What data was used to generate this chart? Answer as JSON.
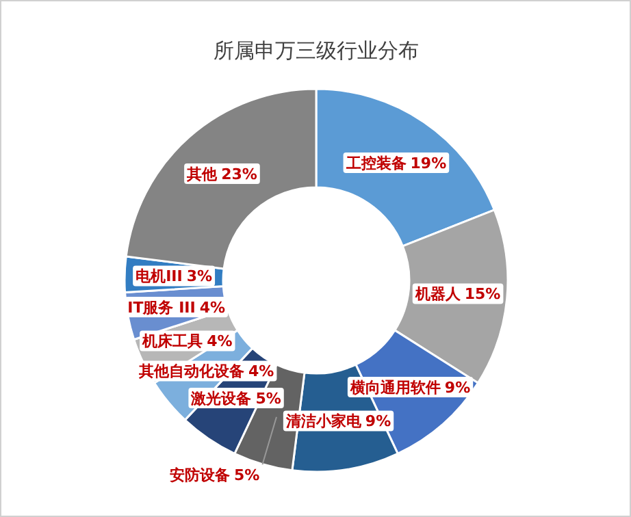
{
  "chart_data": {
    "type": "donut",
    "title": "所属申万三级行业分布",
    "categories": [
      "工控装备",
      "机器人",
      "横向通用软件",
      "清洁小家电",
      "安防设备",
      "激光设备",
      "其他自动化设备",
      "机床工具",
      "IT服务 III",
      "电机III",
      "其他"
    ],
    "values": [
      19,
      15,
      9,
      9,
      5,
      5,
      4,
      4,
      4,
      3,
      23
    ],
    "colors": [
      "#5b9bd5",
      "#a5a5a5",
      "#4472c4",
      "#255e91",
      "#636363",
      "#264478",
      "#7cafdd",
      "#b7b7b7",
      "#698ed0",
      "#327dc2",
      "#848484"
    ],
    "value_labels": [
      "19%",
      "15%",
      "9%",
      "9%",
      "5%",
      "5%",
      "4%",
      "4%",
      "4%",
      "3%",
      "23%"
    ]
  }
}
